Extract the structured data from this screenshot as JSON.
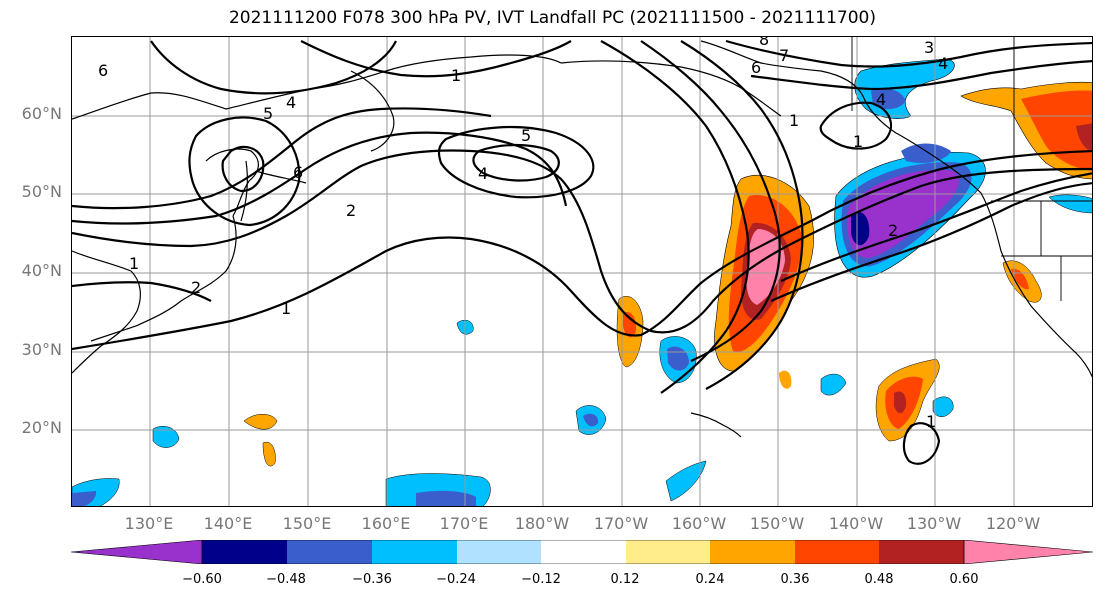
{
  "title": "2021111200 F078 300 hPa PV, IVT Landfall PC (2021111500 - 2021111700)",
  "map": {
    "lat_labels": [
      "60°N",
      "50°N",
      "40°N",
      "30°N",
      "20°N"
    ],
    "lon_labels": [
      "130°E",
      "140°E",
      "150°E",
      "160°E",
      "170°E",
      "180°W",
      "170°W",
      "160°W",
      "150°W",
      "140°W",
      "130°W",
      "120°W"
    ],
    "contour_labels": [
      "1",
      "4",
      "5",
      "6",
      "5",
      "4",
      "2",
      "1",
      "2",
      "1",
      "6",
      "7",
      "8",
      "1",
      "6",
      "3",
      "4",
      "2",
      "4",
      "1",
      "1"
    ],
    "contour_color": "#000000"
  },
  "colorbar": {
    "colors": [
      "#9932cc",
      "#00008b",
      "#3a5fcd",
      "#00bfff",
      "#b0e2ff",
      "#ffffff",
      "#ffec8b",
      "#ffa500",
      "#ff4500",
      "#b22222",
      "#ff82ab"
    ],
    "tick_labels": [
      "−0.60",
      "−0.48",
      "−0.36",
      "−0.24",
      "−0.12",
      "0.12",
      "0.24",
      "0.36",
      "0.48",
      "0.60"
    ]
  }
}
